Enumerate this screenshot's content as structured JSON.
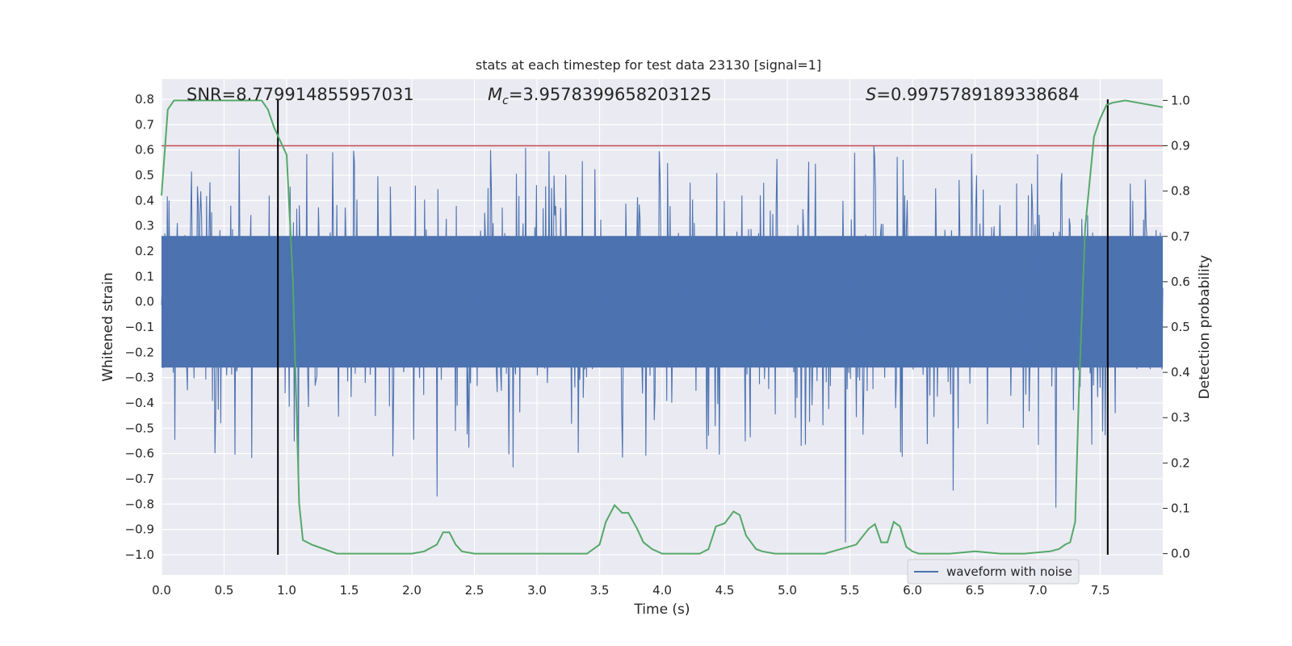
{
  "chart_data": {
    "type": "line",
    "title": "stats at each timestep for test data 23130 [signal=1]",
    "xlabel": "Time (s)",
    "ylabel": "Whitened strain",
    "y2label": "Detection probability",
    "xlim": [
      0.0,
      8.0
    ],
    "ylim": [
      -1.08,
      0.88
    ],
    "y2lim": [
      -0.047,
      1.047
    ],
    "x_ticks": [
      0.0,
      0.5,
      1.0,
      1.5,
      2.0,
      2.5,
      3.0,
      3.5,
      4.0,
      4.5,
      5.0,
      5.5,
      6.0,
      6.5,
      7.0,
      7.5
    ],
    "x_tick_labels": [
      "0.0",
      "0.5",
      "1.0",
      "1.5",
      "2.0",
      "2.5",
      "3.0",
      "3.5",
      "4.0",
      "4.5",
      "5.0",
      "5.5",
      "6.0",
      "6.5",
      "7.0",
      "7.5"
    ],
    "y_ticks": [
      0.8,
      0.7,
      0.6,
      0.5,
      0.4,
      0.3,
      0.2,
      0.1,
      0.0,
      -0.1,
      -0.2,
      -0.3,
      -0.4,
      -0.5,
      -0.6,
      -0.7,
      -0.8,
      -0.9,
      -1.0
    ],
    "y_tick_labels": [
      "0.8",
      "0.7",
      "0.6",
      "0.5",
      "0.4",
      "0.3",
      "0.2",
      "0.1",
      "0.0",
      "−0.1",
      "−0.2",
      "−0.3",
      "−0.4",
      "−0.5",
      "−0.6",
      "−0.7",
      "−0.8",
      "−0.9",
      "−1.0"
    ],
    "y2_ticks": [
      1.0,
      0.9,
      0.8,
      0.7,
      0.6,
      0.5,
      0.4,
      0.3,
      0.2,
      0.1,
      0.0
    ],
    "y2_tick_labels": [
      "1.0",
      "0.9",
      "0.8",
      "0.7",
      "0.6",
      "0.5",
      "0.4",
      "0.3",
      "0.2",
      "0.1",
      "0.0"
    ],
    "grid": true,
    "legend": {
      "position": "lower-right",
      "entries": [
        "waveform with noise"
      ]
    },
    "annotations": {
      "snr": "SNR=8.779914855957031",
      "mc_prefix": "M",
      "mc_sub": "c",
      "mc_value": "=3.9578399658203125",
      "s_prefix": "S",
      "s_value": "=0.9975789189338684"
    },
    "series": [
      {
        "name": "waveform with noise",
        "kind": "noise",
        "color": "#4c72b0",
        "x_range": [
          0.0,
          8.0
        ],
        "samples": 1200,
        "seed": 23130,
        "core_amplitude": 0.26,
        "spike_range": [
          -1.0,
          0.8
        ]
      },
      {
        "kind": "probability",
        "axis": "right",
        "color": "#55a868",
        "x": [
          0.0,
          0.05,
          0.1,
          0.2,
          0.3,
          0.5,
          0.7,
          0.8,
          0.85,
          0.9,
          1.0,
          1.05,
          1.1,
          1.13,
          1.2,
          1.3,
          1.4,
          1.6,
          2.0,
          2.1,
          2.2,
          2.25,
          2.3,
          2.35,
          2.4,
          2.5,
          2.8,
          3.0,
          3.2,
          3.4,
          3.5,
          3.55,
          3.62,
          3.68,
          3.73,
          3.8,
          3.85,
          3.92,
          4.0,
          4.1,
          4.3,
          4.37,
          4.43,
          4.5,
          4.57,
          4.62,
          4.67,
          4.75,
          4.8,
          4.9,
          5.1,
          5.3,
          5.55,
          5.65,
          5.7,
          5.75,
          5.8,
          5.85,
          5.9,
          5.95,
          6.0,
          6.05,
          6.1,
          6.3,
          6.5,
          6.7,
          6.9,
          7.1,
          7.17,
          7.22,
          7.26,
          7.3,
          7.33,
          7.38,
          7.45,
          7.5,
          7.55,
          7.6,
          7.7,
          7.8,
          7.9,
          8.0
        ],
        "y": [
          0.79,
          0.98,
          1.0,
          1.0,
          1.0,
          1.0,
          1.0,
          1.0,
          0.98,
          0.94,
          0.88,
          0.6,
          0.11,
          0.03,
          0.02,
          0.01,
          0.0,
          0.0,
          0.0,
          0.005,
          0.02,
          0.047,
          0.047,
          0.02,
          0.005,
          0.0,
          0.0,
          0.0,
          0.0,
          0.0,
          0.02,
          0.07,
          0.107,
          0.09,
          0.09,
          0.055,
          0.025,
          0.01,
          0.0,
          0.0,
          0.0,
          0.01,
          0.06,
          0.067,
          0.093,
          0.085,
          0.04,
          0.01,
          0.005,
          0.0,
          0.0,
          0.0,
          0.02,
          0.055,
          0.065,
          0.025,
          0.025,
          0.07,
          0.06,
          0.015,
          0.005,
          0.0,
          0.0,
          0.0,
          0.005,
          0.0,
          0.0,
          0.005,
          0.01,
          0.02,
          0.025,
          0.07,
          0.36,
          0.72,
          0.92,
          0.96,
          0.99,
          0.995,
          1.0,
          0.995,
          0.99,
          0.985
        ]
      }
    ],
    "threshold": {
      "value": 0.9,
      "axis": "right",
      "color": "#c44e52"
    },
    "markers": [
      0.93,
      7.56
    ],
    "marker_color": "#000000",
    "background_color": "#eaeaf2"
  }
}
